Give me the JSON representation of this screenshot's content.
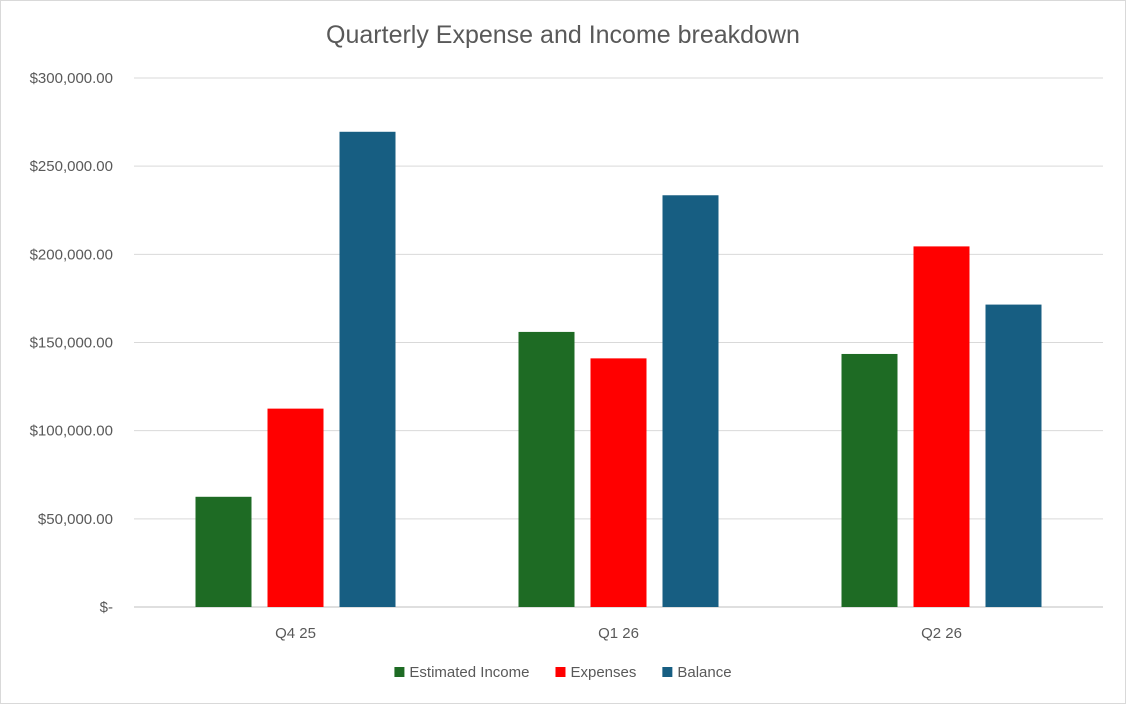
{
  "chart_data": {
    "type": "bar",
    "title": "Quarterly Expense and Income breakdown",
    "xlabel": "",
    "ylabel": "",
    "categories": [
      "Q4 25",
      "Q1 26",
      "Q2 26"
    ],
    "series": [
      {
        "name": "Estimated Income",
        "color": "#1e6b24",
        "values": [
          62500,
          156000,
          143500
        ]
      },
      {
        "name": "Expenses",
        "color": "#ff0000",
        "values": [
          112500,
          141000,
          204500
        ]
      },
      {
        "name": "Balance",
        "color": "#175e82",
        "values": [
          269500,
          233500,
          171500
        ]
      }
    ],
    "ylim": [
      0,
      300000
    ],
    "yticks": [
      0,
      50000,
      100000,
      150000,
      200000,
      250000,
      300000
    ],
    "ytick_labels": [
      "$-",
      "$50,000.00",
      "$100,000.00",
      "$150,000.00",
      "$200,000.00",
      "$250,000.00",
      "$300,000.00"
    ],
    "grid": true,
    "legend_position": "bottom"
  }
}
